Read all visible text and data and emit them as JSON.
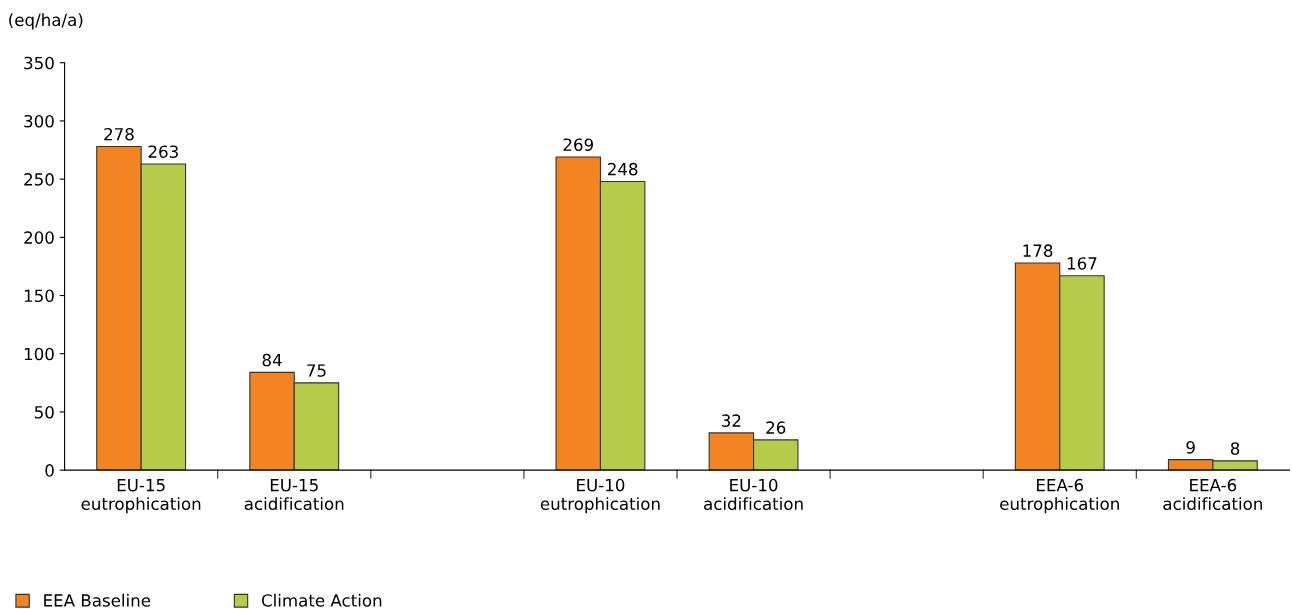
{
  "chart_data": {
    "type": "bar",
    "ylabel": "(eq/ha/a)",
    "categories": [
      "EU-15\neutrophication",
      "EU-15\nacidification",
      null,
      "EU-10\neutrophication",
      "EU-10\nacidification",
      null,
      "EEA-6\neutrophication",
      "EEA-6\nacidification"
    ],
    "series": [
      {
        "name": "EEA Baseline",
        "color": "#f28522",
        "values": [
          278,
          84,
          null,
          269,
          32,
          null,
          178,
          9
        ]
      },
      {
        "name": "Climate Action",
        "color": "#b5cb49",
        "values": [
          263,
          75,
          null,
          248,
          26,
          null,
          167,
          8
        ]
      }
    ],
    "ylim": [
      0,
      350
    ],
    "yticks": [
      0,
      50,
      100,
      150,
      200,
      250,
      300,
      350
    ],
    "data_labels": true,
    "grid": false,
    "legend": "bottom left"
  }
}
